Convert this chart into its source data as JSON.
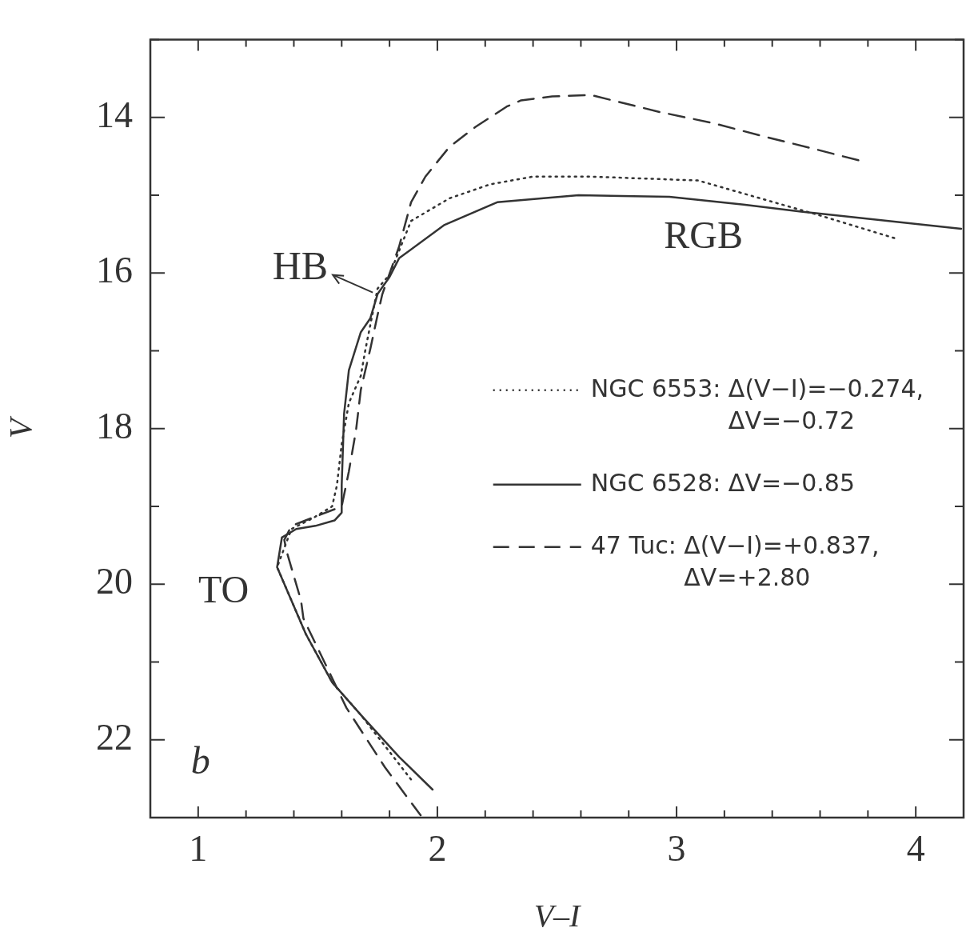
{
  "chart_data": {
    "type": "line",
    "xlabel": "V–I",
    "ylabel": "V",
    "xlim": [
      0.8,
      4.2
    ],
    "ylim": [
      23,
      13
    ],
    "xticks": [
      {
        "value": 0.8,
        "label": null
      },
      {
        "value": 1,
        "label": "1"
      },
      {
        "value": 1.2,
        "label": null
      },
      {
        "value": 1.4,
        "label": null
      },
      {
        "value": 1.6,
        "label": null
      },
      {
        "value": 1.8,
        "label": null
      },
      {
        "value": 2,
        "label": "2"
      },
      {
        "value": 2.2,
        "label": null
      },
      {
        "value": 2.4,
        "label": null
      },
      {
        "value": 2.6,
        "label": null
      },
      {
        "value": 2.8,
        "label": null
      },
      {
        "value": 3,
        "label": "3"
      },
      {
        "value": 3.2,
        "label": null
      },
      {
        "value": 3.4,
        "label": null
      },
      {
        "value": 3.6,
        "label": null
      },
      {
        "value": 3.8,
        "label": null
      },
      {
        "value": 4,
        "label": "4"
      }
    ],
    "yticks": [
      {
        "value": 13,
        "label": null
      },
      14,
      {
        "value": 15,
        "label": null
      },
      16,
      {
        "value": 17,
        "label": null
      },
      18,
      {
        "value": 19,
        "label": null
      },
      20,
      {
        "value": 21,
        "label": null
      },
      22,
      {
        "value": 23,
        "label": null
      }
    ],
    "grid": false,
    "legend": "right",
    "marker": "none",
    "series": [
      {
        "name": "NGC 6553: Δ(V−I)=−0.274, ΔV=−0.72",
        "color": "#333333",
        "line_style": "dotted",
        "x": [
          3.91,
          3.6,
          3.09,
          2.64,
          2.4,
          2.22,
          2.05,
          1.89,
          1.8,
          1.75,
          1.7,
          1.68,
          1.63,
          1.6,
          1.58,
          1.56,
          1.48,
          1.39,
          1.33,
          1.45,
          1.56,
          1.68,
          1.89
        ],
        "values": [
          15.55,
          15.26,
          14.81,
          14.76,
          14.76,
          14.86,
          15.04,
          15.33,
          16.02,
          16.2,
          16.97,
          17.32,
          17.67,
          18.2,
          18.73,
          19.0,
          19.15,
          19.29,
          19.78,
          20.64,
          21.26,
          21.68,
          22.51
        ]
      },
      {
        "name": "NGC 6528: ΔV=−0.85",
        "color": "#333333",
        "line_style": "solid",
        "x": [
          4.19,
          3.52,
          3.28,
          2.97,
          2.59,
          2.25,
          2.03,
          1.84,
          1.8,
          1.75,
          1.72,
          1.68,
          1.63,
          1.61,
          1.6,
          1.6,
          1.57,
          1.49,
          1.41,
          1.35,
          1.33,
          1.45,
          1.56,
          1.68,
          1.84,
          1.98
        ],
        "values": [
          15.43,
          15.21,
          15.12,
          15.02,
          15.0,
          15.09,
          15.38,
          15.81,
          16.05,
          16.27,
          16.58,
          16.76,
          17.25,
          17.81,
          18.73,
          19.08,
          19.18,
          19.25,
          19.29,
          19.4,
          19.78,
          20.64,
          21.26,
          21.68,
          22.22,
          22.64
        ]
      },
      {
        "name": "47 Tuc: Δ(V−I)=+0.837, ΔV=+2.80",
        "color": "#333333",
        "line_style": "dashed",
        "x": [
          3.76,
          3.57,
          3.36,
          3.15,
          2.93,
          2.64,
          2.48,
          2.35,
          2.29,
          2.16,
          2.05,
          1.95,
          1.89,
          1.84,
          1.77,
          1.75,
          1.72,
          1.68,
          1.66,
          1.63,
          1.6,
          1.39,
          1.36,
          1.37,
          1.43,
          1.44,
          1.62,
          1.78,
          1.93
        ],
        "values": [
          14.55,
          14.4,
          14.24,
          14.07,
          13.93,
          13.71,
          13.73,
          13.78,
          13.86,
          14.12,
          14.38,
          14.76,
          15.09,
          15.66,
          16.27,
          16.54,
          16.97,
          17.5,
          18.02,
          18.55,
          19.0,
          19.25,
          19.43,
          19.58,
          20.21,
          20.44,
          21.59,
          22.35,
          22.97
        ]
      }
    ],
    "annotations": [
      {
        "text": "HB",
        "x": 1.73,
        "y": 16.25
      },
      "RGB",
      "TO",
      "b"
    ]
  }
}
